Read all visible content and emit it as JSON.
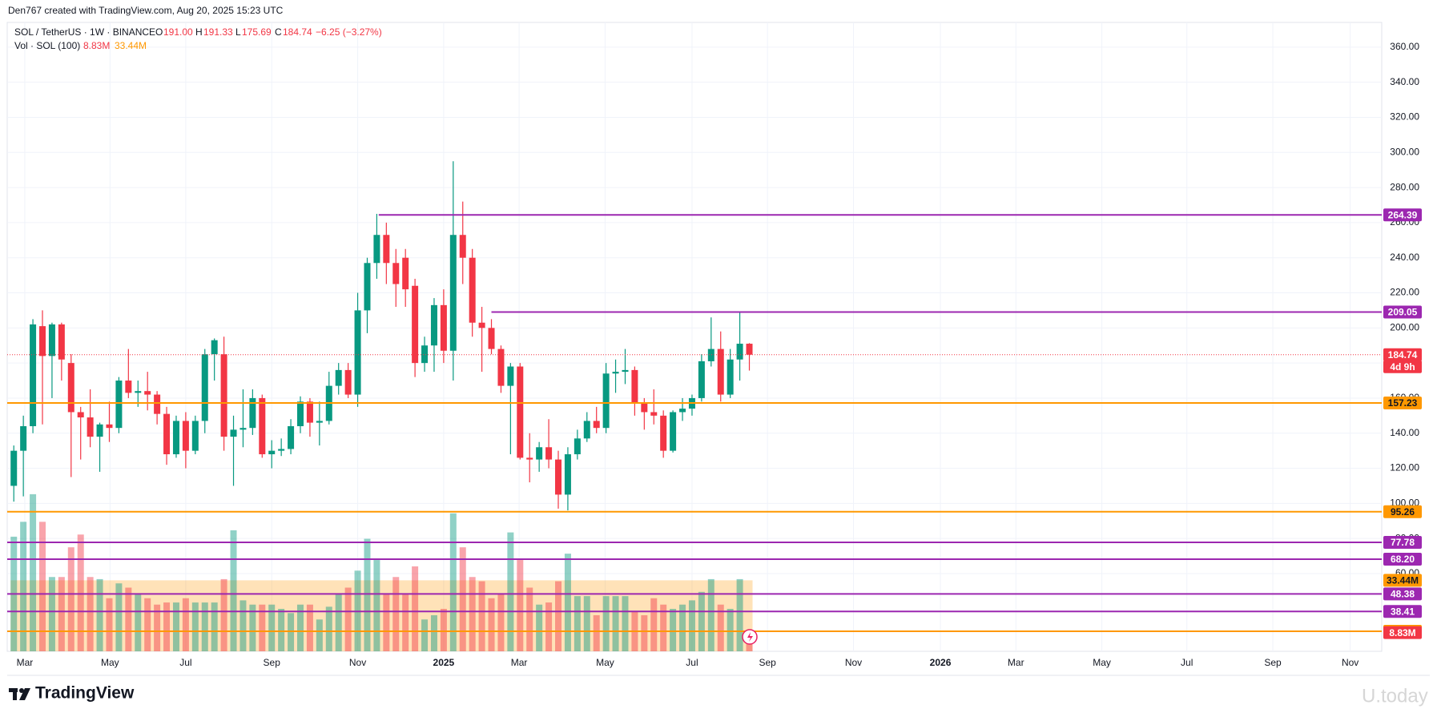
{
  "header": {
    "attribution": "Den767 created with TradingView.com, Aug 20, 2025 15:23 UTC"
  },
  "legend": {
    "symbol": "SOL / TetherUS · 1W · BINANCE",
    "o_label": "O",
    "open": "191.00",
    "h_label": "H",
    "high": "191.33",
    "l_label": "L",
    "low": "175.69",
    "c_label": "C",
    "close": "184.74",
    "change": "−6.25 (−3.27%)",
    "volume_label": "Vol · SOL (100)",
    "volume": "8.83M",
    "volume_ma": "33.44M"
  },
  "chart_data": {
    "type": "candlestick",
    "x": [
      0,
      1,
      2,
      3,
      4,
      5,
      6,
      7,
      8,
      9,
      10,
      11,
      12,
      13,
      14,
      15,
      16,
      17,
      18,
      19,
      20,
      21,
      22,
      23,
      24,
      25,
      26,
      27,
      28,
      29,
      30,
      31,
      32,
      33,
      34,
      35,
      36,
      37,
      38,
      39,
      40,
      41,
      42,
      43,
      44,
      45,
      46,
      47,
      48,
      49,
      50,
      51,
      52,
      53,
      54,
      55,
      56,
      57,
      58,
      59,
      60,
      61,
      62,
      63,
      64,
      65,
      66,
      67,
      68,
      69,
      70,
      71,
      72,
      73,
      74,
      75,
      76,
      77
    ],
    "open": [
      110,
      130,
      144,
      201,
      184,
      202,
      180,
      152,
      149,
      138,
      145,
      143,
      170,
      163,
      164,
      162,
      151,
      128,
      147,
      130,
      147,
      185,
      185,
      138,
      142,
      143,
      160,
      128,
      130,
      131,
      144,
      158,
      146,
      147,
      167,
      176,
      162,
      210,
      237,
      253,
      237,
      240,
      224,
      180,
      190,
      213,
      187,
      253,
      240,
      203,
      200,
      188,
      167,
      178,
      126,
      125,
      132,
      125,
      105,
      128,
      137,
      147,
      143,
      174,
      175,
      176,
      157,
      152,
      150,
      130,
      152,
      154,
      160,
      181,
      188,
      162,
      182,
      191
    ],
    "high": [
      133,
      150,
      205,
      210,
      203,
      203,
      185,
      155,
      165,
      146,
      158,
      172,
      188,
      170,
      175,
      164,
      155,
      150,
      152,
      150,
      188,
      194,
      195,
      150,
      165,
      165,
      162,
      136,
      137,
      148,
      161,
      160,
      158,
      175,
      180,
      180,
      220,
      240,
      265,
      260,
      245,
      245,
      228,
      195,
      217,
      222,
      295,
      272,
      245,
      212,
      205,
      190,
      180,
      180,
      140,
      135,
      148,
      130,
      132,
      142,
      152,
      155,
      180,
      182,
      188,
      178,
      160,
      165,
      153,
      153,
      160,
      162,
      185,
      206,
      198,
      188,
      209.05,
      191.33
    ],
    "low": [
      101,
      104,
      140,
      145,
      160,
      170,
      115,
      125,
      132,
      118,
      135,
      140,
      160,
      155,
      153,
      145,
      122,
      126,
      120,
      128,
      140,
      170,
      130,
      110,
      132,
      139,
      126,
      120,
      127,
      128,
      140,
      138,
      133,
      145,
      162,
      160,
      155,
      197,
      228,
      225,
      212,
      212,
      172,
      175,
      175,
      180,
      170,
      225,
      195,
      175,
      185,
      163,
      128,
      125,
      112,
      118,
      120,
      97,
      96,
      125,
      135,
      140,
      140,
      163,
      168,
      150,
      142,
      145,
      126,
      129,
      147,
      150,
      158,
      178,
      158,
      160,
      170,
      175.69
    ],
    "close": [
      130,
      144,
      202,
      184,
      202,
      182,
      152,
      149,
      138,
      145,
      143,
      170,
      163,
      164,
      162,
      151,
      128,
      147,
      130,
      147,
      185,
      193,
      138,
      142,
      143,
      160,
      128,
      130,
      131,
      144,
      158,
      146,
      147,
      167,
      176,
      162,
      210,
      237,
      253,
      237,
      225,
      222,
      180,
      190,
      213,
      187,
      253,
      240,
      203,
      200,
      188,
      167,
      178,
      126,
      125,
      132,
      125,
      105,
      128,
      137,
      147,
      143,
      174,
      175,
      176,
      157,
      152,
      150,
      130,
      152,
      154,
      160,
      181,
      188,
      162,
      182,
      191,
      184.74
    ],
    "up_color": "#089981",
    "down_color": "#f23645",
    "xlim": [
      -0.69,
      143.2
    ],
    "xticks": [
      {
        "value": 1.15,
        "label": "Mar"
      },
      {
        "value": 10.07,
        "label": "May"
      },
      {
        "value": 18,
        "label": "Jul"
      },
      {
        "value": 27,
        "label": "Sep"
      },
      {
        "value": 36,
        "label": "Nov"
      },
      {
        "value": 45,
        "label": "2025"
      },
      {
        "value": 52.9,
        "label": "Mar"
      },
      {
        "value": 61.9,
        "label": "May"
      },
      {
        "value": 71,
        "label": "Jul"
      },
      {
        "value": 78.9,
        "label": "Sep"
      },
      {
        "value": 87.9,
        "label": "Nov"
      },
      {
        "value": 97,
        "label": "2026"
      },
      {
        "value": 104.9,
        "label": "Mar"
      },
      {
        "value": 113.9,
        "label": "May"
      },
      {
        "value": 122.8,
        "label": "Jul"
      },
      {
        "value": 131.8,
        "label": "Sep"
      },
      {
        "value": 139.9,
        "label": "Nov"
      }
    ],
    "ylim": [
      15.7,
      370.9
    ],
    "yticks": [
      {
        "value": 60,
        "label": "60.00"
      },
      {
        "value": 80,
        "label": "80.00"
      },
      {
        "value": 100,
        "label": "100.00"
      },
      {
        "value": 120,
        "label": "120.00"
      },
      {
        "value": 140,
        "label": "140.00"
      },
      {
        "value": 160,
        "label": "160.00"
      },
      {
        "value": 180,
        "label": "180.00"
      },
      {
        "value": 200,
        "label": "200.00"
      },
      {
        "value": 220,
        "label": "220.00"
      },
      {
        "value": 240,
        "label": "240.00"
      },
      {
        "value": 260,
        "label": "260.00"
      },
      {
        "value": 280,
        "label": "280.00"
      },
      {
        "value": 300,
        "label": "300.00"
      },
      {
        "value": 320,
        "label": "320.00"
      },
      {
        "value": 340,
        "label": "340.00"
      },
      {
        "value": 360,
        "label": "360.00"
      }
    ],
    "grid": true,
    "volume": {
      "values": [
        54,
        61,
        74,
        61,
        35,
        35,
        49,
        55,
        35,
        34,
        25,
        32,
        30,
        27,
        25,
        22,
        23,
        23,
        25,
        23,
        23,
        23,
        34,
        57,
        24,
        22,
        22,
        22,
        20,
        18,
        22,
        22,
        15,
        21,
        27,
        30,
        38,
        53,
        43,
        27,
        35,
        27,
        40,
        15,
        17,
        20,
        65,
        49,
        35,
        33,
        25,
        27,
        56,
        43,
        30,
        22,
        23,
        33,
        46,
        26,
        26,
        17,
        26,
        26,
        26,
        19,
        17,
        25,
        22,
        20,
        22,
        24,
        28,
        34,
        22,
        20,
        34,
        8.83
      ],
      "value_labels": [
        null,
        null,
        null,
        null,
        null,
        null,
        null,
        null,
        null,
        null,
        null,
        null,
        null,
        null,
        null,
        null,
        null,
        null,
        null,
        null,
        null,
        null,
        null,
        null,
        null,
        null,
        null,
        null,
        null,
        null,
        null,
        null,
        null,
        null,
        null,
        null,
        null,
        null,
        null,
        null,
        null,
        null,
        null,
        null,
        null,
        null,
        null,
        null,
        null,
        null,
        null,
        null,
        null,
        null,
        null,
        null,
        null,
        null,
        null,
        null,
        null,
        null,
        null,
        null,
        null,
        null,
        null,
        null,
        null,
        null,
        null,
        null,
        null,
        null,
        null,
        null,
        null,
        "8.83M"
      ],
      "up_color": "rgba(8,153,129,0.45)",
      "down_color": "rgba(242,54,69,0.45)",
      "ma": {
        "value": 33.44,
        "label": "33.44M",
        "color": "#ff9800"
      }
    },
    "levels": [
      {
        "value": 264.39,
        "color": "#9c27b0",
        "text_color": "#ffffff",
        "from": 38.2
      },
      {
        "value": 209.05,
        "color": "#9c27b0",
        "text_color": "#ffffff",
        "from": 50
      },
      {
        "value": 157.23,
        "color": "#ff9800",
        "text_color": "#131722"
      },
      {
        "value": 95.26,
        "color": "#ff9800",
        "text_color": "#131722"
      },
      {
        "value": 77.78,
        "color": "#9c27b0",
        "text_color": "#ffffff"
      },
      {
        "value": 68.2,
        "label": "68.20",
        "color": "#9c27b0",
        "text_color": "#ffffff"
      },
      {
        "value": 48.38,
        "color": "#9c27b0",
        "text_color": "#ffffff"
      },
      {
        "value": 38.41,
        "color": "#9c27b0",
        "text_color": "#ffffff"
      },
      {
        "value": 27.12,
        "color": "#ff9800",
        "text_color": "#131722"
      }
    ],
    "last_price": {
      "countdown": "4d 9h"
    }
  },
  "footer": {
    "logo": "TradingView",
    "watermark": "U.today"
  }
}
